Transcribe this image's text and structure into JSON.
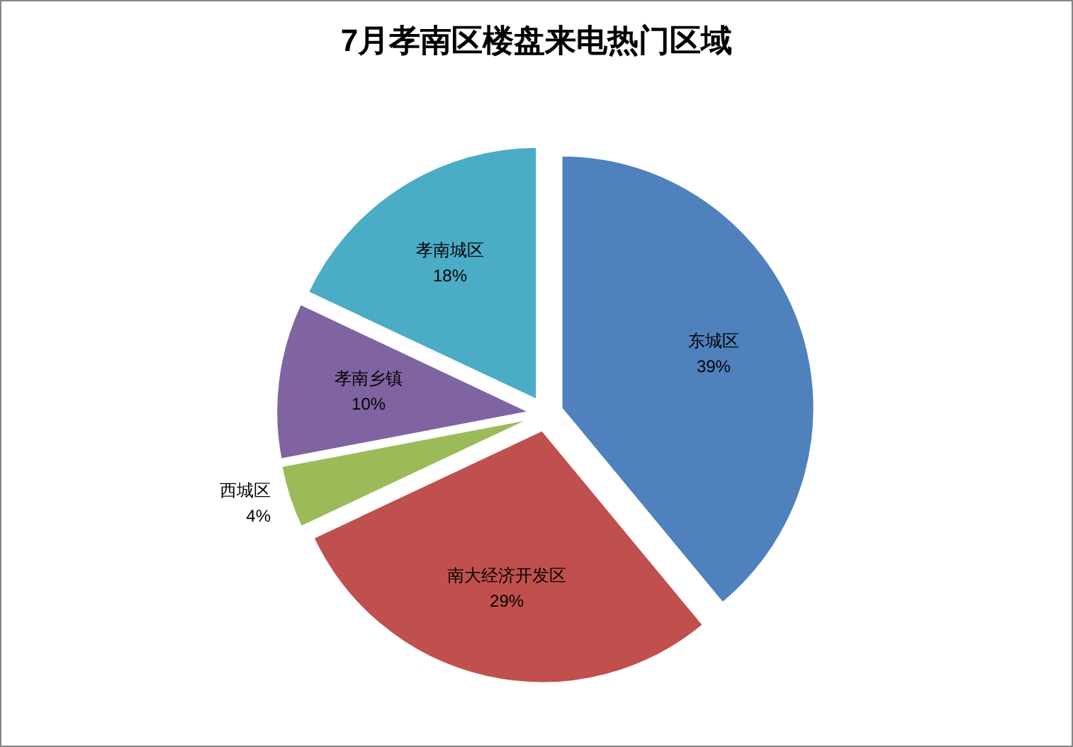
{
  "chart_data": {
    "type": "pie",
    "title": "7月孝南区楼盘来电热门区域",
    "categories": [
      "东城区",
      "南大经济开发区",
      "西城区",
      "孝南乡镇",
      "孝南城区"
    ],
    "values": [
      39,
      29,
      4,
      10,
      18
    ],
    "value_labels": [
      "39%",
      "29%",
      "4%",
      "10%",
      "18%"
    ],
    "colors": [
      "#4f81bd",
      "#c0504d",
      "#9bbb59",
      "#8064a2",
      "#4bacc6"
    ]
  }
}
